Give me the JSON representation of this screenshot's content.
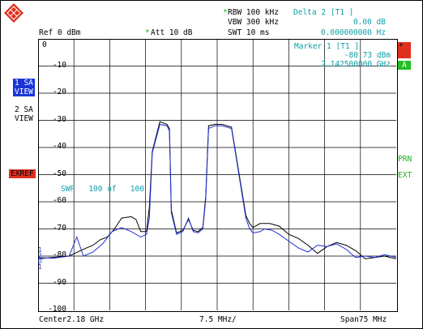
{
  "header": {
    "ref_level": "Ref 0 dBm",
    "att_star": "*",
    "attenuation": "Att 10 dB",
    "rbw_star": "*",
    "rbw": "RBW 100 kHz",
    "vbw": "VBW 300 kHz",
    "swt": "SWT 10 ms",
    "delta_title": "Delta 2 [T1 ]",
    "delta_level": "0.00 dB",
    "delta_freq": "0.000000000 Hz"
  },
  "marker": {
    "title": "Marker 1 [T1 ]",
    "level": "-80.73 dBm",
    "freq": "2.142500000 GHz"
  },
  "left_panel": {
    "trace1_label_a": "1 SA",
    "trace1_label_b": "VIEW",
    "trace2_label_a": "2 SA",
    "trace2_label_b": "VIEW",
    "exref": "EXREF"
  },
  "right_panel": {
    "star_badge": "*",
    "a_badge": "A",
    "prn": "PRN",
    "ext": "EXT"
  },
  "sweep_text": "SWP   100 of   100",
  "footer": {
    "center": "Center2.18 GHz",
    "per_div": "7.5 MHz/",
    "span": "Span75 MHz"
  },
  "y_axis_labels": [
    "0",
    "-10",
    "-20",
    "-30",
    "-40",
    "-50",
    "-60",
    "-70",
    "-80",
    "-90",
    "-100"
  ],
  "colors": {
    "trace1": "#1f2fd6",
    "trace2": "#000000",
    "grid": "#000000",
    "annotation": "#0f9ea8",
    "status": "#19b419",
    "logo": "#e0301e"
  },
  "chart_data": {
    "type": "line",
    "x_unit": "MHz",
    "y_unit": "dBm",
    "xlim": [
      2142.5,
      2217.5
    ],
    "ylim": [
      -100,
      0
    ],
    "series": [
      {
        "name": "1 SA",
        "x": [
          2142.5,
          2145.5,
          2149,
          2150.6,
          2152,
          2154,
          2156,
          2158,
          2160,
          2162,
          2164,
          2165.2,
          2165.8,
          2166.4,
          2168,
          2169.5,
          2170,
          2170.4,
          2171.5,
          2172.8,
          2174,
          2175,
          2176,
          2177,
          2177.6,
          2178.2,
          2179.5,
          2181,
          2183,
          2186,
          2186.8,
          2187.5,
          2189,
          2190,
          2191.5,
          2193,
          2195,
          2197,
          2199,
          2201,
          2203,
          2205,
          2207,
          2209,
          2211,
          2213,
          2215,
          2217.5
        ],
        "y": [
          -80.5,
          -80.8,
          -80,
          -73,
          -80,
          -78.5,
          -75.5,
          -71,
          -69.5,
          -71,
          -73,
          -72,
          -66,
          -42,
          -31.5,
          -32,
          -34,
          -64,
          -72,
          -71,
          -66,
          -71,
          -71.5,
          -70,
          -59,
          -33,
          -32,
          -32,
          -33,
          -66,
          -70,
          -71.5,
          -71,
          -70,
          -70.5,
          -72,
          -74.5,
          -77,
          -78.5,
          -76,
          -76.5,
          -75.5,
          -77.5,
          -80.5,
          -80,
          -80.5,
          -79.5,
          -80.5
        ]
      },
      {
        "name": "2 SA",
        "x": [
          2142.5,
          2145.5,
          2149,
          2152,
          2154,
          2155.5,
          2157,
          2158.5,
          2160,
          2162,
          2163,
          2164,
          2165.2,
          2165.8,
          2166.4,
          2168,
          2169.5,
          2170,
          2170.4,
          2171.5,
          2172.8,
          2174,
          2175,
          2176,
          2177,
          2177.6,
          2178.2,
          2179.5,
          2181,
          2183,
          2186,
          2186.8,
          2187.5,
          2189,
          2191,
          2193,
          2195,
          2197,
          2199,
          2201,
          2203,
          2205,
          2207,
          2209,
          2211,
          2213,
          2215,
          2217.5
        ],
        "y": [
          -81,
          -80.5,
          -80,
          -77.5,
          -76,
          -74,
          -73,
          -70,
          -66,
          -65.5,
          -66.5,
          -71,
          -71,
          -62,
          -41.5,
          -30.5,
          -31.5,
          -33,
          -63,
          -71.5,
          -70.5,
          -66.5,
          -70.5,
          -71,
          -69.5,
          -58,
          -32,
          -31.5,
          -31.5,
          -32.5,
          -65,
          -68,
          -69.5,
          -68,
          -68,
          -69,
          -72,
          -73.5,
          -76,
          -79,
          -76.5,
          -75,
          -76,
          -78,
          -81,
          -80.5,
          -80,
          -81
        ]
      }
    ]
  }
}
